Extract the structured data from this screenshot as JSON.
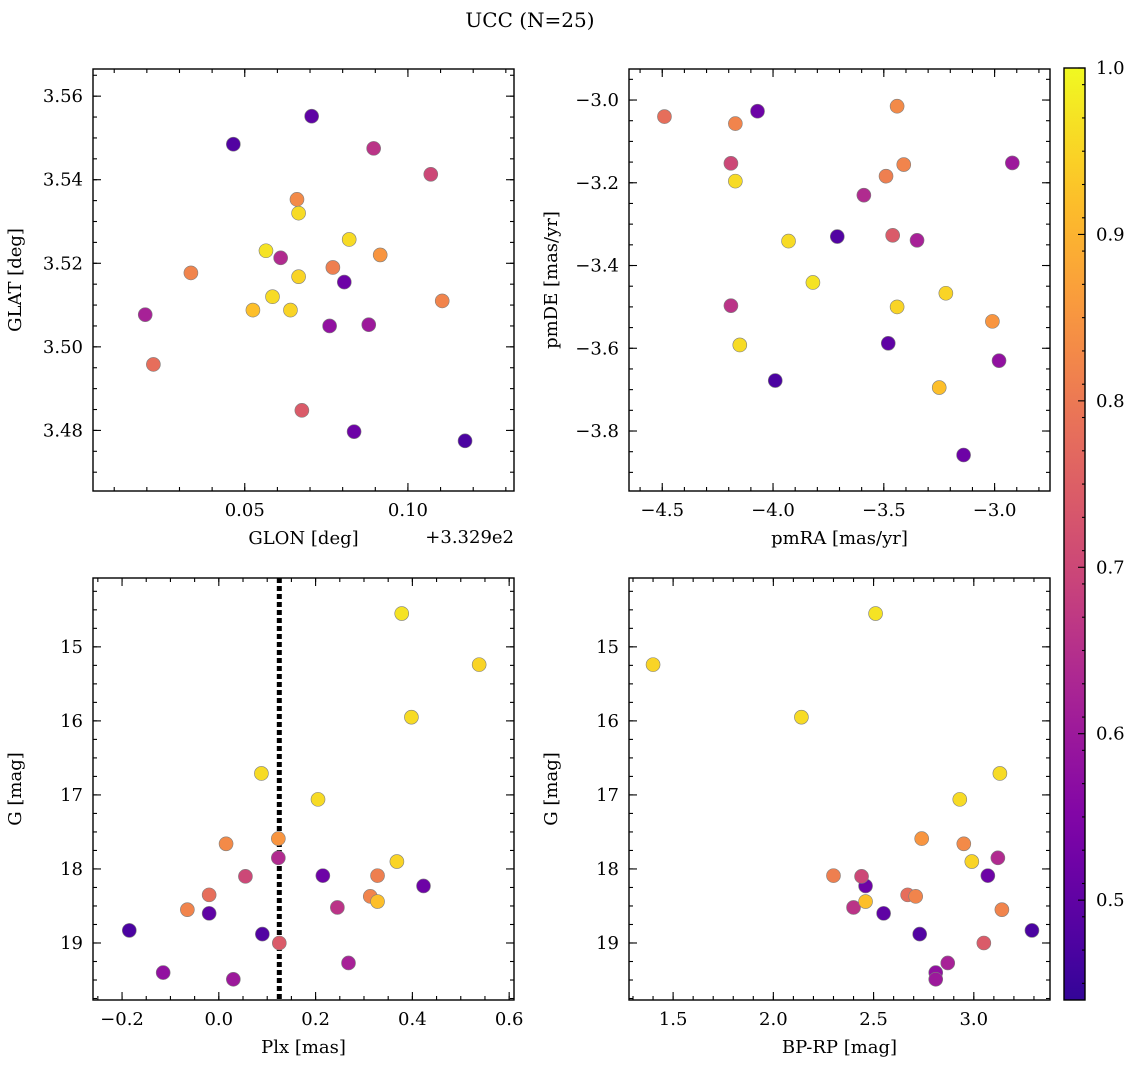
{
  "figure_title": "UCC (N=25)",
  "chart_data": [
    {
      "type": "scatter",
      "id": "pos",
      "xlabel": "GLON [deg]",
      "ylabel": "GLAT [deg]",
      "xlim": [
        0.0035,
        0.1325
      ],
      "ylim": [
        3.4655,
        3.5665
      ],
      "xticks": [
        0.05,
        0.1
      ],
      "xticklabels": [
        "0.05",
        "0.10"
      ],
      "yticks": [
        3.48,
        3.5,
        3.52,
        3.54,
        3.56
      ],
      "yticklabels": [
        "3.48",
        "3.50",
        "3.52",
        "3.54",
        "3.56"
      ],
      "offset_label": "+3.329e2",
      "invert_y": false
    },
    {
      "type": "scatter",
      "id": "pm",
      "xlabel": "pmRA [mas/yr]",
      "ylabel": "pmDE [mas/yr]",
      "xlim": [
        -4.65,
        -2.75
      ],
      "ylim": [
        -3.945,
        -2.925
      ],
      "xticks": [
        -4.5,
        -4.0,
        -3.5,
        -3.0
      ],
      "xticklabels": [
        "−4.5",
        "−4.0",
        "−3.5",
        "−3.0"
      ],
      "yticks": [
        -3.8,
        -3.6,
        -3.4,
        -3.2,
        -3.0
      ],
      "yticklabels": [
        "−3.8",
        "−3.6",
        "−3.4",
        "−3.2",
        "−3.0"
      ],
      "invert_y": false
    },
    {
      "type": "scatter",
      "id": "plx",
      "xlabel": "Plx [mas]",
      "ylabel": "G [mag]",
      "xlim": [
        -0.26,
        0.61
      ],
      "ylim": [
        14.07,
        19.77
      ],
      "xticks": [
        -0.2,
        0.0,
        0.2,
        0.4,
        0.6
      ],
      "xticklabels": [
        "−0.2",
        "0.0",
        "0.2",
        "0.4",
        "0.6"
      ],
      "yticks": [
        15,
        16,
        17,
        18,
        19
      ],
      "yticklabels": [
        "15",
        "16",
        "17",
        "18",
        "19"
      ],
      "invert_y": true,
      "vline": 0.125
    },
    {
      "type": "scatter",
      "id": "cmd",
      "xlabel": "BP-RP [mag]",
      "ylabel": "G [mag]",
      "xlim": [
        1.28,
        3.38
      ],
      "ylim": [
        14.07,
        19.77
      ],
      "xticks": [
        1.5,
        2.0,
        2.5,
        3.0
      ],
      "xticklabels": [
        "1.5",
        "2.0",
        "2.5",
        "3.0"
      ],
      "yticks": [
        15,
        16,
        17,
        18,
        19
      ],
      "yticklabels": [
        "15",
        "16",
        "17",
        "18",
        "19"
      ],
      "invert_y": true
    }
  ],
  "points": [
    {
      "glon": 0.0465,
      "glat": 3.5485,
      "pmra": -3.71,
      "pmde": -3.33,
      "plx": 0.09,
      "g": 18.88,
      "bprp": 2.73,
      "prob": 0.48
    },
    {
      "glon": 0.0705,
      "glat": 3.5552,
      "pmra": -3.48,
      "pmde": -3.588,
      "plx": -0.02,
      "g": 18.6,
      "bprp": 2.55,
      "prob": 0.5
    },
    {
      "glon": 0.0895,
      "glat": 3.5475,
      "pmra": -4.19,
      "pmde": -3.497,
      "plx": 0.245,
      "g": 18.52,
      "bprp": 2.4,
      "prob": 0.66
    },
    {
      "glon": 0.107,
      "glat": 3.5413,
      "pmra": -4.19,
      "pmde": -3.153,
      "plx": 0.055,
      "g": 18.1,
      "bprp": 2.44,
      "prob": 0.7
    },
    {
      "glon": 0.066,
      "glat": 3.5353,
      "pmra": -3.44,
      "pmde": -3.015,
      "plx": 0.015,
      "g": 17.66,
      "bprp": 2.95,
      "prob": 0.83
    },
    {
      "glon": 0.0665,
      "glat": 3.532,
      "pmra": -4.17,
      "pmde": -3.196,
      "plx": 0.205,
      "g": 17.06,
      "bprp": 2.93,
      "prob": 0.96
    },
    {
      "glon": 0.082,
      "glat": 3.5257,
      "pmra": -3.93,
      "pmde": -3.341,
      "plx": 0.088,
      "g": 16.71,
      "bprp": 3.13,
      "prob": 0.96
    },
    {
      "glon": 0.0565,
      "glat": 3.523,
      "pmra": -3.82,
      "pmde": -3.441,
      "plx": 0.378,
      "g": 14.55,
      "bprp": 2.51,
      "prob": 0.97
    },
    {
      "glon": 0.0915,
      "glat": 3.522,
      "pmra": -3.01,
      "pmde": -3.535,
      "plx": 0.123,
      "g": 17.59,
      "bprp": 2.74,
      "prob": 0.85
    },
    {
      "glon": 0.061,
      "glat": 3.5213,
      "pmra": -3.59,
      "pmde": -3.23,
      "plx": 0.123,
      "g": 17.85,
      "bprp": 3.12,
      "prob": 0.64
    },
    {
      "glon": 0.0335,
      "glat": 3.5177,
      "pmra": -4.17,
      "pmde": -3.057,
      "plx": -0.065,
      "g": 18.55,
      "bprp": 3.14,
      "prob": 0.82
    },
    {
      "glon": 0.077,
      "glat": 3.519,
      "pmra": -3.49,
      "pmde": -3.184,
      "plx": 0.328,
      "g": 18.09,
      "bprp": 2.3,
      "prob": 0.81
    },
    {
      "glon": 0.0665,
      "glat": 3.5168,
      "pmra": -3.22,
      "pmde": -3.467,
      "plx": 0.368,
      "g": 17.9,
      "bprp": 2.99,
      "prob": 0.95
    },
    {
      "glon": 0.0805,
      "glat": 3.5155,
      "pmra": -4.07,
      "pmde": -3.027,
      "plx": 0.215,
      "g": 18.09,
      "bprp": 3.07,
      "prob": 0.52
    },
    {
      "glon": 0.0585,
      "glat": 3.512,
      "pmra": -4.15,
      "pmde": -3.592,
      "plx": 0.398,
      "g": 15.95,
      "bprp": 2.14,
      "prob": 0.96
    },
    {
      "glon": 0.1105,
      "glat": 3.511,
      "pmra": -3.41,
      "pmde": -3.156,
      "plx": 0.313,
      "g": 18.37,
      "bprp": 2.71,
      "prob": 0.82
    },
    {
      "glon": 0.0525,
      "glat": 3.5088,
      "pmra": -3.25,
      "pmde": -3.695,
      "plx": 0.328,
      "g": 18.44,
      "bprp": 2.46,
      "prob": 0.92
    },
    {
      "glon": 0.064,
      "glat": 3.5088,
      "pmra": -3.44,
      "pmde": -3.5,
      "plx": 0.538,
      "g": 15.24,
      "bprp": 1.4,
      "prob": 0.95
    },
    {
      "glon": 0.0195,
      "glat": 3.5077,
      "pmra": -3.35,
      "pmde": -3.339,
      "plx": 0.268,
      "g": 19.27,
      "bprp": 2.87,
      "prob": 0.62
    },
    {
      "glon": 0.076,
      "glat": 3.505,
      "pmra": -2.98,
      "pmde": -3.63,
      "plx": -0.115,
      "g": 19.4,
      "bprp": 2.81,
      "prob": 0.58
    },
    {
      "glon": 0.088,
      "glat": 3.5053,
      "pmra": -2.92,
      "pmde": -3.152,
      "plx": 0.03,
      "g": 19.49,
      "bprp": 2.81,
      "prob": 0.6
    },
    {
      "glon": 0.022,
      "glat": 3.4958,
      "pmra": -4.49,
      "pmde": -3.04,
      "plx": -0.02,
      "g": 18.35,
      "bprp": 2.67,
      "prob": 0.78
    },
    {
      "glon": 0.0675,
      "glat": 3.4848,
      "pmra": -3.46,
      "pmde": -3.327,
      "plx": 0.125,
      "g": 19.0,
      "bprp": 3.05,
      "prob": 0.74
    },
    {
      "glon": 0.0835,
      "glat": 3.4797,
      "pmra": -3.14,
      "pmde": -3.858,
      "plx": 0.423,
      "g": 18.23,
      "bprp": 2.46,
      "prob": 0.52
    },
    {
      "glon": 0.1175,
      "glat": 3.4775,
      "pmra": -3.99,
      "pmde": -3.678,
      "plx": -0.185,
      "g": 18.83,
      "bprp": 3.29,
      "prob": 0.47
    }
  ],
  "colorbar": {
    "range": [
      0.44,
      1.0
    ],
    "ticks": [
      0.5,
      0.6,
      0.7,
      0.8,
      0.9,
      1.0
    ],
    "ticklabels": [
      "0.5",
      "0.6",
      "0.7",
      "0.8",
      "0.9",
      "1.0"
    ],
    "cmap": "plasma"
  }
}
